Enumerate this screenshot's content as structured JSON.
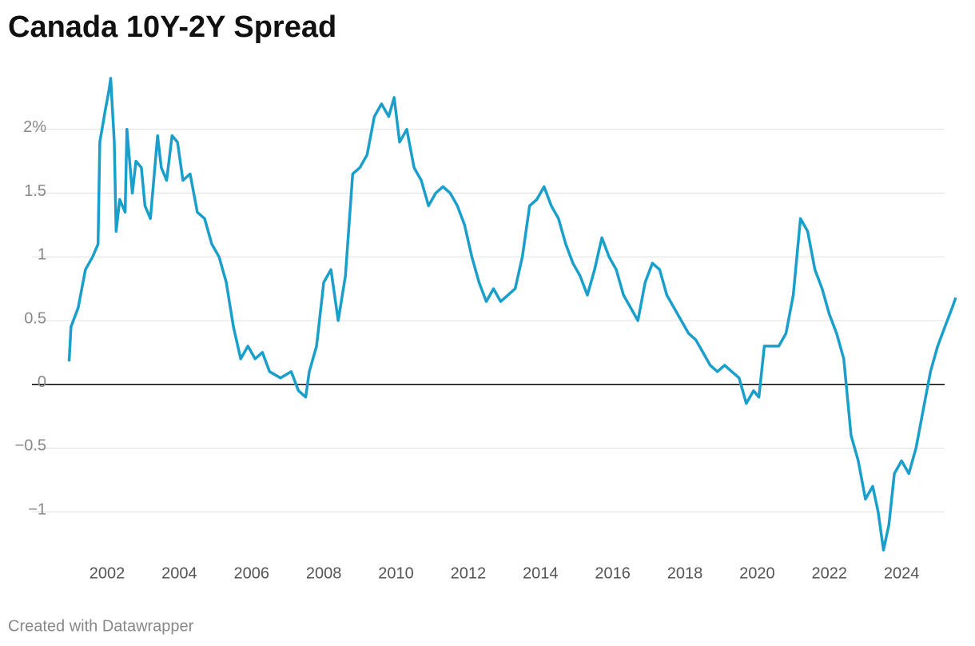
{
  "chart_data": {
    "type": "line",
    "title": "Canada 10Y-2Y Spread",
    "footer": "Created with Datawrapper",
    "x": [
      2000.95,
      2001.0,
      2001.2,
      2001.4,
      2001.6,
      2001.75,
      2001.8,
      2001.95,
      2002.05,
      2002.1,
      2002.2,
      2002.25,
      2002.35,
      2002.5,
      2002.55,
      2002.7,
      2002.8,
      2002.95,
      2003.05,
      2003.2,
      2003.4,
      2003.5,
      2003.65,
      2003.8,
      2003.95,
      2004.1,
      2004.3,
      2004.5,
      2004.7,
      2004.9,
      2005.1,
      2005.3,
      2005.5,
      2005.7,
      2005.9,
      2006.1,
      2006.3,
      2006.5,
      2006.8,
      2007.1,
      2007.3,
      2007.5,
      2007.6,
      2007.8,
      2008.0,
      2008.2,
      2008.4,
      2008.6,
      2008.8,
      2009.0,
      2009.2,
      2009.4,
      2009.6,
      2009.8,
      2009.95,
      2010.1,
      2010.3,
      2010.5,
      2010.7,
      2010.9,
      2011.1,
      2011.3,
      2011.5,
      2011.7,
      2011.9,
      2012.1,
      2012.3,
      2012.5,
      2012.7,
      2012.9,
      2013.1,
      2013.3,
      2013.5,
      2013.7,
      2013.9,
      2014.1,
      2014.3,
      2014.5,
      2014.7,
      2014.9,
      2015.1,
      2015.3,
      2015.5,
      2015.7,
      2015.9,
      2016.1,
      2016.3,
      2016.5,
      2016.7,
      2016.9,
      2017.1,
      2017.3,
      2017.5,
      2017.7,
      2017.9,
      2018.1,
      2018.3,
      2018.5,
      2018.7,
      2018.9,
      2019.1,
      2019.3,
      2019.5,
      2019.7,
      2019.9,
      2020.05,
      2020.2,
      2020.4,
      2020.6,
      2020.8,
      2021.0,
      2021.2,
      2021.4,
      2021.6,
      2021.8,
      2022.0,
      2022.2,
      2022.4,
      2022.6,
      2022.8,
      2023.0,
      2023.2,
      2023.35,
      2023.5,
      2023.65,
      2023.8,
      2024.0,
      2024.2,
      2024.4,
      2024.6,
      2024.8,
      2025.0,
      2025.2,
      2025.4,
      2025.5
    ],
    "values": [
      0.18,
      0.45,
      0.6,
      0.9,
      1.0,
      1.1,
      1.9,
      2.15,
      2.3,
      2.4,
      1.9,
      1.2,
      1.45,
      1.35,
      2.0,
      1.5,
      1.75,
      1.7,
      1.4,
      1.3,
      1.95,
      1.7,
      1.6,
      1.95,
      1.9,
      1.6,
      1.65,
      1.35,
      1.3,
      1.1,
      1.0,
      0.8,
      0.45,
      0.2,
      0.3,
      0.2,
      0.25,
      0.1,
      0.05,
      0.1,
      -0.05,
      -0.1,
      0.1,
      0.3,
      0.8,
      0.9,
      0.5,
      0.85,
      1.65,
      1.7,
      1.8,
      2.1,
      2.2,
      2.1,
      2.25,
      1.9,
      2.0,
      1.7,
      1.6,
      1.4,
      1.5,
      1.55,
      1.5,
      1.4,
      1.25,
      1.0,
      0.8,
      0.65,
      0.75,
      0.65,
      0.7,
      0.75,
      1.0,
      1.4,
      1.45,
      1.55,
      1.4,
      1.3,
      1.1,
      0.95,
      0.85,
      0.7,
      0.9,
      1.15,
      1.0,
      0.9,
      0.7,
      0.6,
      0.5,
      0.8,
      0.95,
      0.9,
      0.7,
      0.6,
      0.5,
      0.4,
      0.35,
      0.25,
      0.15,
      0.1,
      0.15,
      0.1,
      0.05,
      -0.15,
      -0.05,
      -0.1,
      0.3,
      0.3,
      0.3,
      0.4,
      0.7,
      1.3,
      1.2,
      0.9,
      0.75,
      0.55,
      0.4,
      0.2,
      -0.4,
      -0.6,
      -0.9,
      -0.8,
      -1.0,
      -1.3,
      -1.1,
      -0.7,
      -0.6,
      -0.7,
      -0.5,
      -0.2,
      0.1,
      0.3,
      0.45,
      0.6,
      0.68
    ],
    "color": "#1a9fcb",
    "xlim": [
      2000,
      2026
    ],
    "xticks": [
      2002,
      2004,
      2006,
      2008,
      2010,
      2012,
      2014,
      2016,
      2018,
      2020,
      2022,
      2024
    ],
    "ylim": [
      -1.35,
      2.45
    ],
    "yticks": [
      {
        "value": -1,
        "label": "−1"
      },
      {
        "value": -0.5,
        "label": "−0.5"
      },
      0,
      0.5,
      1,
      1.5,
      {
        "value": 2,
        "label": "2%"
      }
    ],
    "grid": true
  }
}
